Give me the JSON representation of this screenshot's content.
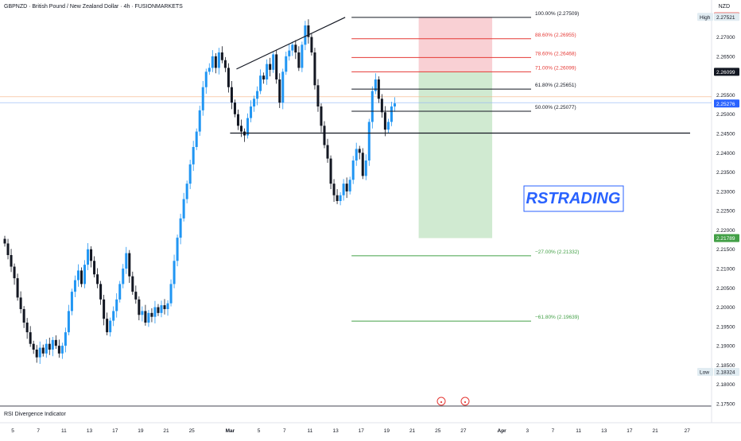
{
  "header": {
    "symbol_title": "GBPNZD · British Pound / New Zealand Dollar · 4h · FUSIONMARKETS",
    "currency": "NZD"
  },
  "indicator_label": "RSI Divergence Indicator",
  "watermark": "RSTRADING",
  "colors": {
    "bull": "#2196f3",
    "bear": "#131722",
    "fib": "#131722",
    "fib_upper": "#e53935",
    "ext": "#43a047",
    "stop_zone": "#f8c8cd",
    "target_zone": "#c8e6c9",
    "brand": "#2962ff",
    "current_label": "#2962ff",
    "level_label": "#131722",
    "high_low_label": "#e1ecf2"
  },
  "chart_data": {
    "type": "candlestick",
    "yaxis": {
      "min": 2.175,
      "max": 2.28,
      "ticks": [
        "2.27000",
        "2.26500",
        "2.25500",
        "2.25000",
        "2.24500",
        "2.24000",
        "2.23500",
        "2.23000",
        "2.22500",
        "2.22000",
        "2.21500",
        "2.21000",
        "2.20500",
        "2.20000",
        "2.19500",
        "2.19000",
        "2.18500",
        "2.18000",
        "2.17500"
      ]
    },
    "xaxis": {
      "ticks": [
        {
          "label": "5",
          "bar": 3
        },
        {
          "label": "7",
          "bar": 11
        },
        {
          "label": "11",
          "bar": 19
        },
        {
          "label": "13",
          "bar": 27
        },
        {
          "label": "17",
          "bar": 35
        },
        {
          "label": "19",
          "bar": 43
        },
        {
          "label": "21",
          "bar": 51
        },
        {
          "label": "25",
          "bar": 59
        },
        {
          "label": "Mar",
          "bar": 71
        },
        {
          "label": "5",
          "bar": 80
        },
        {
          "label": "7",
          "bar": 88
        },
        {
          "label": "11",
          "bar": 96
        },
        {
          "label": "13",
          "bar": 104
        },
        {
          "label": "17",
          "bar": 112
        },
        {
          "label": "19",
          "bar": 120
        },
        {
          "label": "21",
          "bar": 128
        },
        {
          "label": "25",
          "bar": 136
        },
        {
          "label": "27",
          "bar": 144
        },
        {
          "label": "Apr",
          "bar": 156
        },
        {
          "label": "3",
          "bar": 164
        },
        {
          "label": "7",
          "bar": 172
        },
        {
          "label": "11",
          "bar": 180
        },
        {
          "label": "13",
          "bar": 188
        },
        {
          "label": "17",
          "bar": 196
        },
        {
          "label": "21",
          "bar": 204
        },
        {
          "label": "27",
          "bar": 214
        }
      ]
    },
    "closes": [
      2.2165,
      2.2135,
      2.2105,
      2.2075,
      2.2025,
      2.1995,
      2.196,
      2.1935,
      2.1905,
      2.189,
      2.187,
      2.1895,
      2.188,
      2.1905,
      2.189,
      2.1915,
      2.19,
      2.188,
      2.19,
      2.1935,
      2.199,
      2.204,
      2.207,
      2.2095,
      2.206,
      2.211,
      2.215,
      2.212,
      2.2085,
      2.206,
      2.202,
      2.197,
      2.1935,
      2.1965,
      2.199,
      2.202,
      2.206,
      2.21,
      2.214,
      2.208,
      2.204,
      2.202,
      2.198,
      2.199,
      2.196,
      2.1985,
      2.1975,
      2.2,
      2.1985,
      2.2005,
      2.1995,
      2.201,
      2.206,
      2.212,
      2.218,
      2.223,
      2.228,
      2.232,
      2.237,
      2.2415,
      2.2455,
      2.251,
      2.257,
      2.261,
      2.262,
      2.265,
      2.262,
      2.266,
      2.264,
      2.262,
      2.257,
      2.253,
      2.25,
      2.247,
      2.2455,
      2.2445,
      2.249,
      2.252,
      2.254,
      2.256,
      2.26,
      2.259,
      2.263,
      2.2615,
      2.2655,
      2.259,
      2.253,
      2.261,
      2.265,
      2.2665,
      2.268,
      2.266,
      2.262,
      2.268,
      2.273,
      2.27,
      2.266,
      2.2575,
      2.252,
      2.247,
      2.242,
      2.2385,
      2.232,
      2.229,
      2.2275,
      2.229,
      2.232,
      2.23,
      2.233,
      2.238,
      2.241,
      2.24,
      2.234,
      2.238,
      2.248,
      2.256,
      2.259,
      2.254,
      2.2505,
      2.246,
      2.248,
      2.252,
      2.2528
    ],
    "bars_total": 222,
    "fib_levels": [
      {
        "label": "100.00% (2.27509)",
        "value": 2.27509,
        "kind": "fib"
      },
      {
        "label": "88.60% (2.26955)",
        "value": 2.26955,
        "kind": "fib_upper"
      },
      {
        "label": "78.60% (2.26468)",
        "value": 2.26468,
        "kind": "fib_upper"
      },
      {
        "label": "71.00% (2.26099)",
        "value": 2.26099,
        "kind": "fib_upper"
      },
      {
        "label": "61.80% (2.25651)",
        "value": 2.25651,
        "kind": "fib"
      },
      {
        "label": "50.00% (2.25077)",
        "value": 2.25077,
        "kind": "fib"
      }
    ],
    "extensions": [
      {
        "label": "−27.00% (2.21332)",
        "value": 2.21332
      },
      {
        "label": "−61.80% (2.19639)",
        "value": 2.19639
      }
    ],
    "support_line": 2.2451,
    "trendline": {
      "from_bar": 73,
      "from_value": 2.2617,
      "to_bar": 107,
      "to_value": 2.2751
    },
    "position": {
      "entry": 2.26099,
      "stop": 2.2752,
      "target": 2.21789,
      "from_bar": 130,
      "to_bar": 153
    },
    "price_labels": [
      {
        "text": "2.27534",
        "value": 2.27534,
        "style": "red"
      },
      {
        "text": "2.27521",
        "value": 2.27521,
        "style": "high",
        "tag": "High"
      },
      {
        "text": "2.26099",
        "value": 2.26099,
        "style": "dark"
      },
      {
        "text": "2.25276",
        "value": 2.25276,
        "style": "blue"
      },
      {
        "text": "2.21789",
        "value": 2.21789,
        "style": "green"
      },
      {
        "text": "2.18324",
        "value": 2.18324,
        "style": "low",
        "tag": "Low"
      }
    ],
    "horizontal_marks": [
      2.2545,
      2.253
    ]
  }
}
